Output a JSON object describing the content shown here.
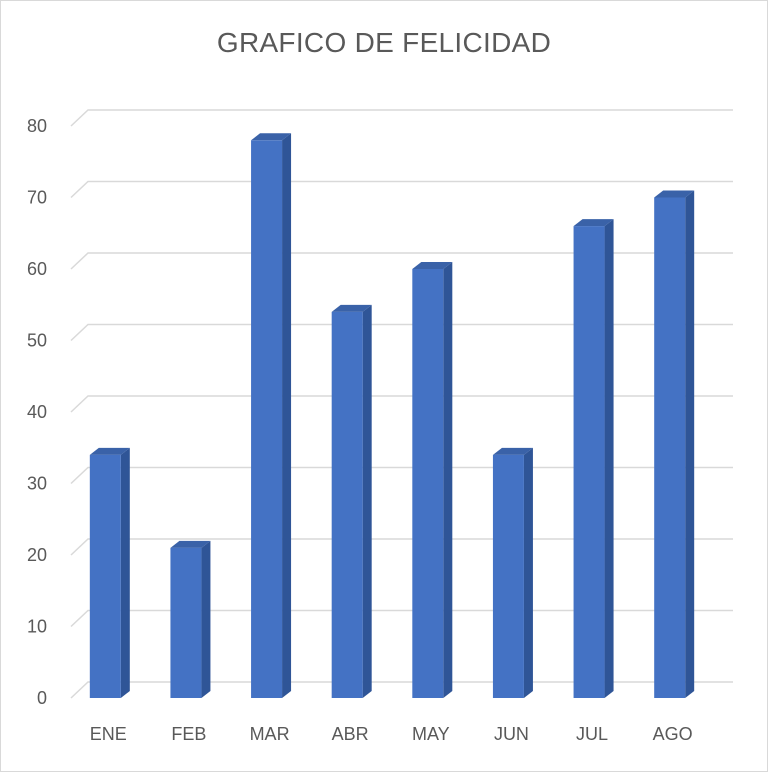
{
  "chart_data": {
    "type": "bar",
    "title": "GRAFICO DE FELICIDAD",
    "categories": [
      "ENE",
      "FEB",
      "MAR",
      "ABR",
      "MAY",
      "JUN",
      "JUL",
      "AGO"
    ],
    "values": [
      34,
      21,
      78,
      54,
      60,
      34,
      66,
      70
    ],
    "ylim": [
      0,
      80
    ],
    "yticks": [
      "0",
      "10",
      "20",
      "30",
      "40",
      "50",
      "60",
      "70",
      "80"
    ],
    "xlabel": "",
    "ylabel": "",
    "grid": true,
    "legend": "none",
    "colors": {
      "bar_front": "#4472c4",
      "bar_side": "#2f5597",
      "bar_top": "#3a62a8",
      "grid": "#d9d9d9",
      "text": "#595959"
    }
  }
}
